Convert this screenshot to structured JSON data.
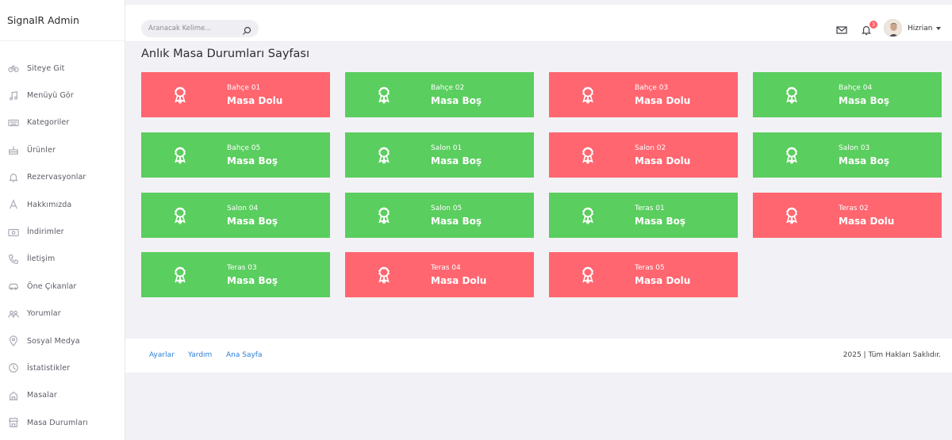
{
  "brand": "SignalR Admin",
  "sidebar": {
    "items": [
      {
        "label": "Siteye Git",
        "icon": "bicycle-icon"
      },
      {
        "label": "Menüyü Gör",
        "icon": "music-note-icon"
      },
      {
        "label": "Kategoriler",
        "icon": "keyboard-icon"
      },
      {
        "label": "Ürünler",
        "icon": "cake-icon"
      },
      {
        "label": "Rezervasyonlar",
        "icon": "bell-icon"
      },
      {
        "label": "Hakkımızda",
        "icon": "letter-a-icon"
      },
      {
        "label": "İndirimler",
        "icon": "money-icon"
      },
      {
        "label": "İletişim",
        "icon": "phone-icon"
      },
      {
        "label": "Öne Çıkanlar",
        "icon": "car-icon"
      },
      {
        "label": "Yorumlar",
        "icon": "users-icon"
      },
      {
        "label": "Sosyal Medya",
        "icon": "map-pin-icon"
      },
      {
        "label": "İstatistikler",
        "icon": "clock-icon"
      },
      {
        "label": "Masalar",
        "icon": "building-icon"
      },
      {
        "label": "Masa Durumları",
        "icon": "shop-icon"
      }
    ]
  },
  "header": {
    "search_placeholder": "Aranacak Kelime...",
    "notification_count": "3",
    "username": "Hizrian"
  },
  "page": {
    "title": "Anlık Masa Durumları Sayfası"
  },
  "tables": [
    {
      "name": "Bahçe 01",
      "status": "Masa Dolu",
      "state": "dolu"
    },
    {
      "name": "Bahçe 02",
      "status": "Masa Boş",
      "state": "bos"
    },
    {
      "name": "Bahçe 03",
      "status": "Masa Dolu",
      "state": "dolu"
    },
    {
      "name": "Bahçe 04",
      "status": "Masa Boş",
      "state": "bos"
    },
    {
      "name": "Bahçe 05",
      "status": "Masa Boş",
      "state": "bos"
    },
    {
      "name": "Salon 01",
      "status": "Masa Boş",
      "state": "bos"
    },
    {
      "name": "Salon 02",
      "status": "Masa Dolu",
      "state": "dolu"
    },
    {
      "name": "Salon 03",
      "status": "Masa Boş",
      "state": "bos"
    },
    {
      "name": "Salon 04",
      "status": "Masa Boş",
      "state": "bos"
    },
    {
      "name": "Salon 05",
      "status": "Masa Boş",
      "state": "bos"
    },
    {
      "name": "Teras 01",
      "status": "Masa Boş",
      "state": "bos"
    },
    {
      "name": "Teras 02",
      "status": "Masa Dolu",
      "state": "dolu"
    },
    {
      "name": "Teras 03",
      "status": "Masa Boş",
      "state": "bos"
    },
    {
      "name": "Teras 04",
      "status": "Masa Dolu",
      "state": "dolu"
    },
    {
      "name": "Teras 05",
      "status": "Masa Dolu",
      "state": "dolu"
    }
  ],
  "colors": {
    "dolu": "#ff6670",
    "bos": "#5ace5e",
    "link": "#2d7fd8"
  },
  "footer": {
    "links": [
      "Ayarlar",
      "Yardım",
      "Ana Sayfa"
    ],
    "copyright": "2025 | Tüm Hakları Saklıdır."
  }
}
